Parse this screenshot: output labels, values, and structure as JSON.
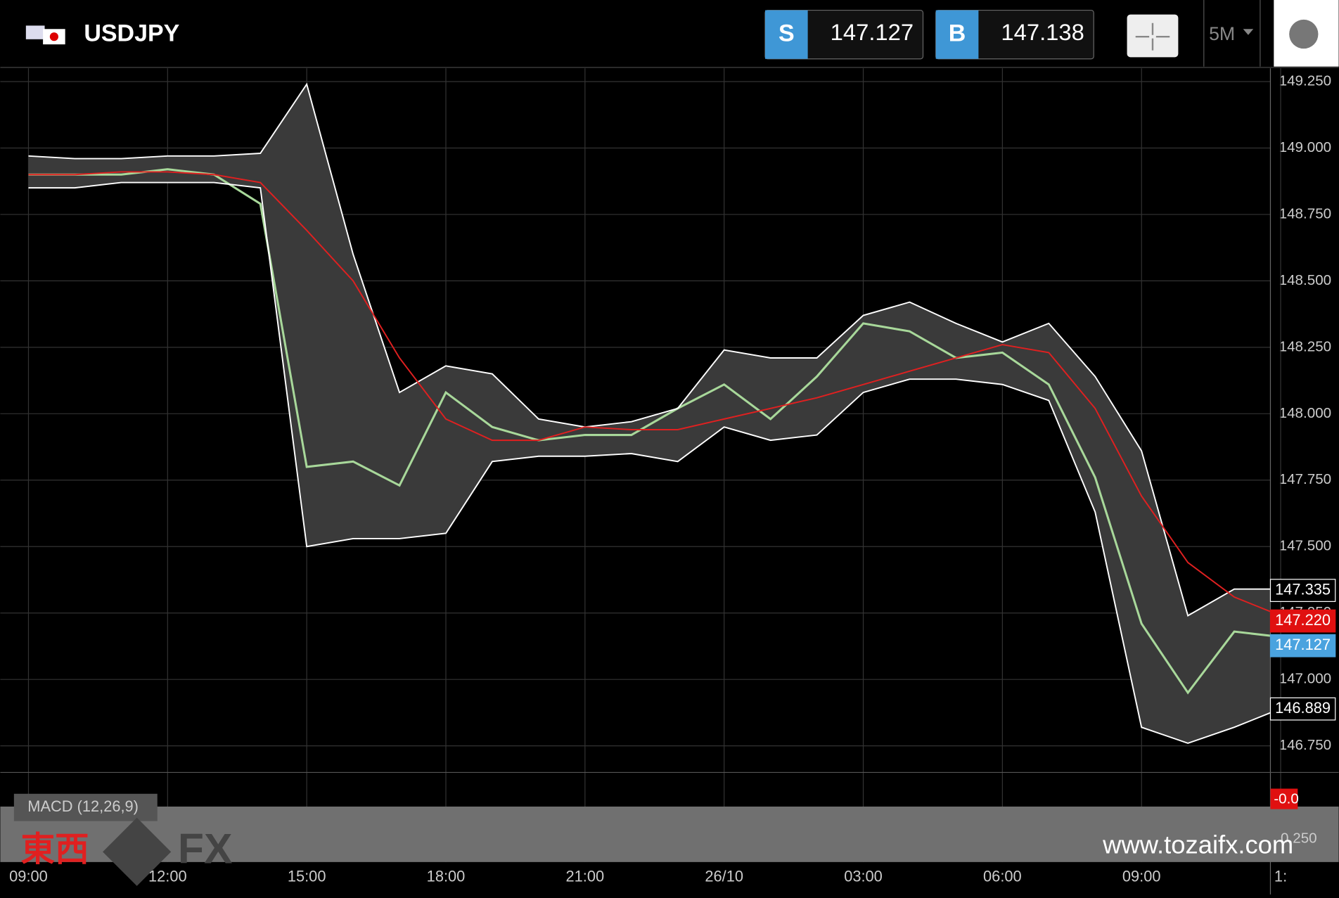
{
  "header": {
    "symbol": "USDJPY",
    "sell": {
      "label": "S",
      "price": "147.127"
    },
    "buy": {
      "label": "B",
      "price": "147.138"
    },
    "timeframe": "5M"
  },
  "chart_data": {
    "type": "line",
    "categories": [
      "09:00",
      null,
      null,
      "12:00",
      null,
      null,
      "15:00",
      null,
      null,
      "18:00",
      null,
      null,
      "21:00",
      null,
      null,
      "26/10",
      null,
      null,
      "03:00",
      null,
      null,
      "06:00",
      null,
      null,
      "09:00",
      null,
      null,
      "1:"
    ],
    "series": [
      {
        "color": "#a8d89a",
        "values": [
          148.9,
          148.9,
          148.9,
          148.92,
          148.9,
          148.79,
          147.8,
          147.82,
          147.73,
          148.08,
          147.95,
          147.9,
          147.92,
          147.92,
          148.02,
          148.11,
          147.98,
          148.14,
          148.34,
          148.31,
          148.21,
          148.23,
          148.11,
          147.76,
          147.21,
          146.95,
          147.18,
          147.16
        ]
      },
      {
        "color": "#ffffff",
        "values": [
          148.97,
          148.96,
          148.96,
          148.97,
          148.97,
          148.98,
          149.24,
          148.6,
          148.08,
          148.18,
          148.15,
          147.98,
          147.95,
          147.97,
          148.02,
          148.24,
          148.21,
          148.21,
          148.37,
          148.42,
          148.34,
          148.27,
          148.34,
          148.14,
          147.86,
          147.24,
          147.34,
          147.34
        ]
      },
      {
        "color": "#ffffff",
        "values": [
          148.85,
          148.85,
          148.87,
          148.87,
          148.87,
          148.85,
          147.5,
          147.53,
          147.53,
          147.55,
          147.82,
          147.84,
          147.84,
          147.85,
          147.82,
          147.95,
          147.9,
          147.92,
          148.08,
          148.13,
          148.13,
          148.11,
          148.05,
          147.63,
          146.82,
          146.76,
          146.82,
          146.89
        ]
      },
      {
        "color": "#e02020",
        "values": [
          148.9,
          148.9,
          148.91,
          148.91,
          148.9,
          148.87,
          148.69,
          148.5,
          148.21,
          147.98,
          147.9,
          147.9,
          147.95,
          147.94,
          147.94,
          147.98,
          148.02,
          148.06,
          148.11,
          148.16,
          148.21,
          148.26,
          148.23,
          148.02,
          147.69,
          147.44,
          147.31,
          147.24
        ]
      }
    ],
    "ylim": [
      146.65,
      149.3
    ],
    "yticks": [
      {
        "value": 146.75,
        "label": "146.750"
      },
      {
        "value": 147,
        "label": "147.000"
      },
      {
        "value": 147.25,
        "label": "147.250"
      },
      {
        "value": 147.5,
        "label": "147.500"
      },
      {
        "value": 147.75,
        "label": "147.750"
      },
      {
        "value": 148,
        "label": "148.000"
      },
      {
        "value": 148.25,
        "label": "148.250"
      },
      {
        "value": 148.5,
        "label": "148.500"
      },
      {
        "value": 148.75,
        "label": "148.750"
      },
      {
        "value": 149,
        "label": "149.000"
      },
      {
        "value": 149.25,
        "label": "149.250"
      }
    ],
    "grid": true,
    "price_tags": [
      {
        "value": 147.335,
        "label": "147.335",
        "color": "#ffffff"
      },
      {
        "value": 147.22,
        "label": "147.220",
        "color": "#e01010"
      },
      {
        "value": 147.127,
        "label": "147.127",
        "color": "#4aa3df"
      },
      {
        "value": 146.889,
        "label": "146.889",
        "color": "#ffffff"
      }
    ]
  },
  "macd": {
    "label": "MACD (12,26,9)",
    "value_label": "-0.0",
    "tick": "0.250"
  },
  "watermark": {
    "brand": "東西",
    "fx": "FX",
    "url": "www.tozaifx.com"
  }
}
